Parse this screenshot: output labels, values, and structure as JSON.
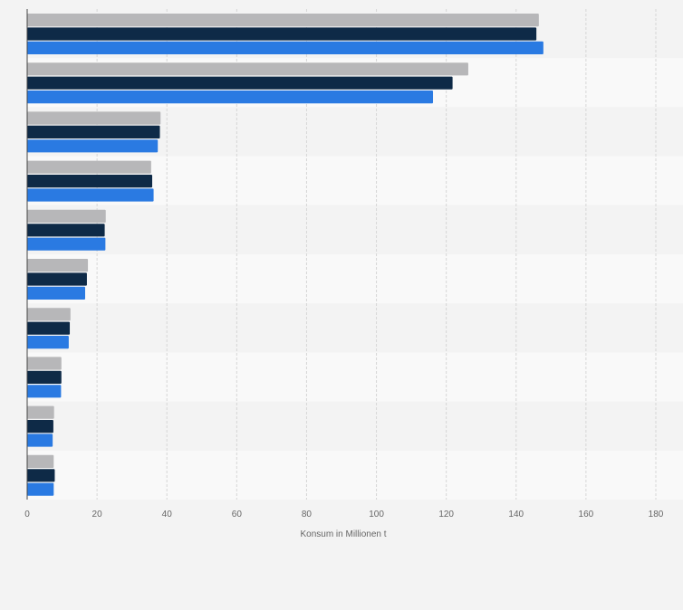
{
  "chart_data": {
    "type": "bar",
    "orientation": "horizontal",
    "categories": [
      "",
      "",
      "",
      "",
      "",
      "",
      "",
      "",
      "",
      ""
    ],
    "series": [
      {
        "color": "#b7b7b9",
        "values": [
          146.5,
          126.3,
          38.2,
          35.5,
          22.5,
          17.4,
          12.4,
          9.8,
          7.7,
          7.6
        ]
      },
      {
        "color": "#0e2a47",
        "values": [
          145.8,
          121.8,
          38.0,
          35.8,
          22.2,
          17.1,
          12.2,
          9.8,
          7.5,
          7.9
        ]
      },
      {
        "color": "#2a7ae2",
        "values": [
          147.8,
          116.2,
          37.4,
          36.2,
          22.4,
          16.6,
          11.9,
          9.7,
          7.3,
          7.6
        ]
      }
    ],
    "xlim": [
      0,
      180
    ],
    "xticks": [
      "0",
      "20",
      "40",
      "60",
      "80",
      "100",
      "120",
      "140",
      "160",
      "180"
    ],
    "xlabel": "Konsum in Millionen t",
    "ylabel": "",
    "title": "",
    "grid": true,
    "legend": "none"
  }
}
